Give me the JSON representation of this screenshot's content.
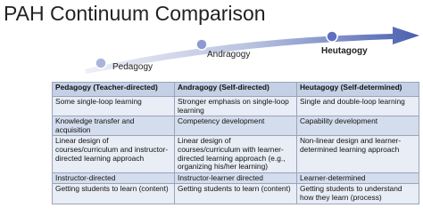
{
  "header": {
    "title": "PAH Continuum Comparison"
  },
  "stages": [
    "Pedagogy",
    "Andragogy",
    "Heutagogy"
  ],
  "table": {
    "header": [
      "Pedagogy (Teacher-directed)",
      "Andragogy (Self-directed)",
      "Heutagogy (Self-determined)"
    ],
    "rows": [
      [
        "Some single-loop learning",
        "Stronger emphasis on single-loop learning",
        "Single and double-loop learning"
      ],
      [
        "Knowledge transfer and acquisition",
        "Competency development",
        "Capability development"
      ],
      [
        "Linear design of courses/curriculum and instructor-directed learning approach",
        "Linear design of courses/curriculum with learner-directed learning approach (e.g., organizing his/her learning)",
        "Non-linear design and learner-determined learning approach"
      ],
      [
        "Instructor-directed",
        "Instructor-learner directed",
        "Learner-determined"
      ],
      [
        "Getting students to learn (content)",
        "Getting students to learn (content)",
        "Getting students to understand how they learn (process)"
      ]
    ]
  }
}
